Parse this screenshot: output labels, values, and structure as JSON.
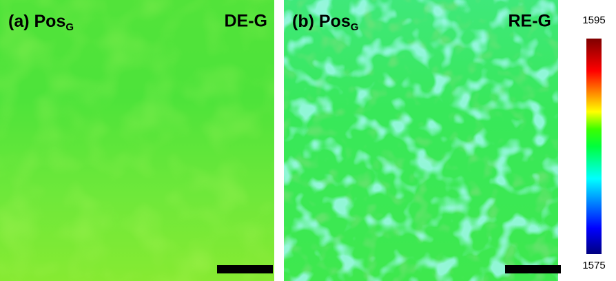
{
  "panels": [
    {
      "label": "(a) Pos",
      "subscript": "G",
      "tag": "DE-G"
    },
    {
      "label": "(b) Pos",
      "subscript": "G",
      "tag": "RE-G"
    }
  ],
  "colorbar": {
    "max": "1595",
    "min": "1575"
  }
}
